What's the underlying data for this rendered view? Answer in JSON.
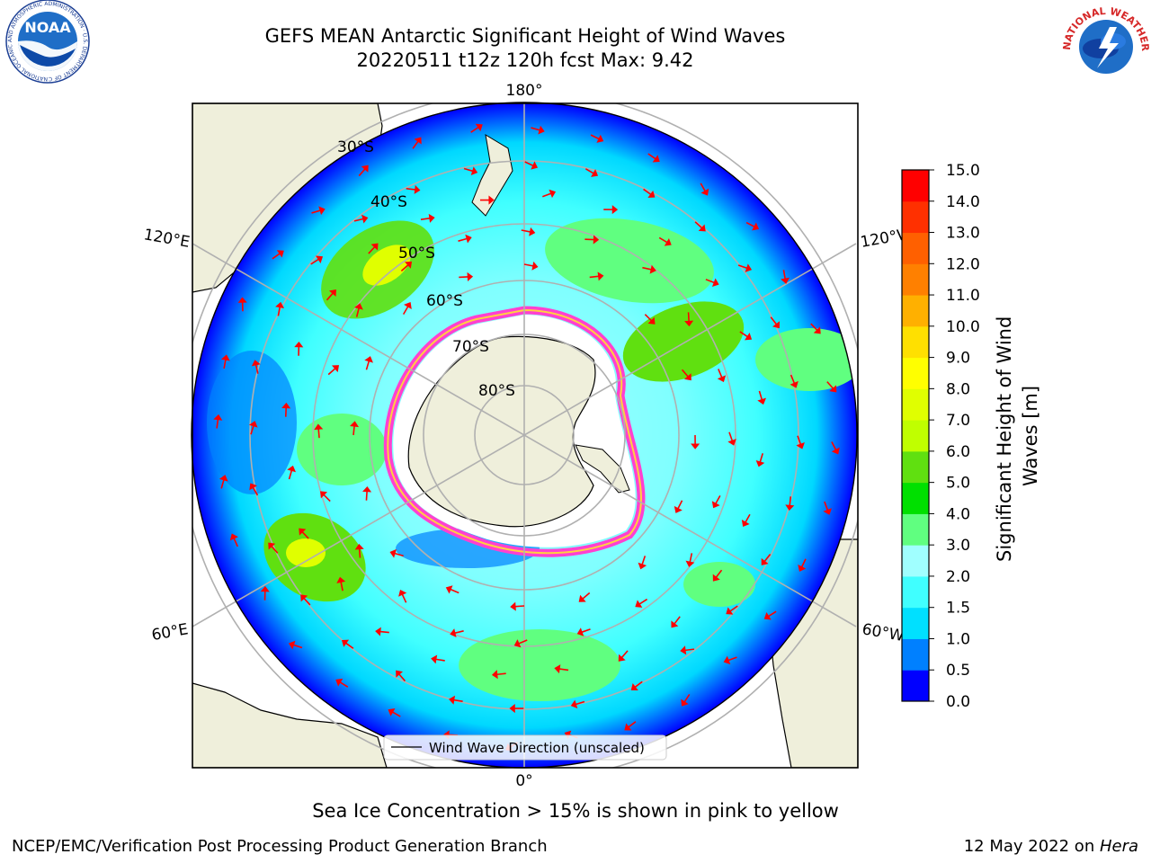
{
  "header": {
    "title_line1": "GEFS MEAN Antarctic Significant Height of Wind Waves",
    "title_line2": "20220511 t12z 120h fcst   Max: 9.42"
  },
  "logos": {
    "noaa_text": "NOAA",
    "noaa_ring_text": "NATIONAL OCEANIC AND ATMOSPHERIC ADMINISTRATION · U.S. DEPARTMENT OF COMMERCE",
    "nws_ring_text": "NATIONAL WEATHER SERVICE"
  },
  "map": {
    "projection": "south-polar-stereographic",
    "longitude_labels": {
      "top": "180°",
      "bottom": "0°",
      "upper_left": "120°E",
      "upper_right": "120°W",
      "lower_left": "60°E",
      "lower_right": "60°W"
    },
    "latitude_labels": [
      "30°S",
      "40°S",
      "50°S",
      "60°S",
      "70°S",
      "80°S"
    ],
    "legend_label": "Wind Wave Direction (unscaled)",
    "arrow_color": "#ff0000"
  },
  "colorbar": {
    "label": "Significant Height of Wind Waves [m]",
    "ticks": [
      "0.0",
      "0.5",
      "1.0",
      "1.5",
      "2.0",
      "3.0",
      "4.0",
      "5.0",
      "6.0",
      "7.0",
      "8.0",
      "9.0",
      "10.0",
      "11.0",
      "12.0",
      "13.0",
      "14.0",
      "15.0"
    ],
    "colors": [
      "#0000ff",
      "#0080ff",
      "#00e0ff",
      "#40ffff",
      "#a0ffff",
      "#60ff80",
      "#00e000",
      "#60e010",
      "#c0ff00",
      "#e0ff00",
      "#ffff00",
      "#ffe000",
      "#ffb000",
      "#ff8000",
      "#ff6000",
      "#ff3000",
      "#ff0000"
    ]
  },
  "note": "Sea Ice Concentration > 15% is shown in pink to yellow",
  "footer": {
    "left": "NCEP/EMC/Verification Post Processing Product Generation Branch",
    "right_prefix": "12 May 2022 on ",
    "right_machine": "Hera"
  }
}
